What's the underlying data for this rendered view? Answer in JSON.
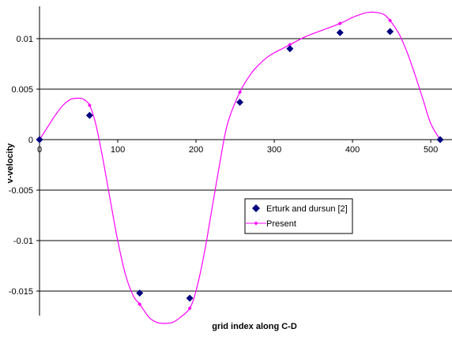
{
  "chart_data": {
    "type": "line",
    "title": "",
    "xlabel": "grid index along C-D",
    "ylabel": "v-velocity",
    "xlim": [
      0,
      530
    ],
    "ylim": [
      -0.0182,
      0.0128
    ],
    "x_ticks": [
      0,
      100,
      200,
      300,
      400,
      500
    ],
    "x_tick_labels": [
      "0",
      "100",
      "200",
      "300",
      "400",
      "500"
    ],
    "y_ticks": [
      0.01,
      0.005,
      0,
      -0.005,
      -0.01,
      -0.015
    ],
    "y_tick_labels": [
      "0.01",
      "0.005",
      "0",
      "-0.005",
      "-0.01",
      "-0.015"
    ],
    "grid": "horizontal",
    "legend_position": "center-right",
    "series": [
      {
        "name": "Erturk and dursun [2]",
        "style": "markers",
        "marker": "diamond",
        "color": "#000080",
        "x": [
          0,
          64,
          128,
          192,
          256,
          320,
          384,
          448,
          512
        ],
        "y": [
          0,
          0.0024,
          -0.0152,
          -0.0157,
          0.0037,
          0.009,
          0.0106,
          0.0107,
          0
        ]
      },
      {
        "name": "Present",
        "style": "line+markers",
        "marker": "diamond-small",
        "color": "#ff00ff",
        "x": [
          0,
          64,
          128,
          192,
          256,
          320,
          384,
          448,
          512
        ],
        "y": [
          0,
          0.0034,
          -0.0163,
          -0.0167,
          0.0047,
          0.0094,
          0.0115,
          0.0118,
          0
        ],
        "curve_x": [
          0,
          10,
          20,
          30,
          40,
          50,
          56,
          64,
          72,
          80,
          90,
          100,
          110,
          120,
          128,
          140,
          150,
          160,
          170,
          180,
          192,
          200,
          210,
          220,
          230,
          240,
          256,
          270,
          280,
          290,
          300,
          310,
          320,
          340,
          360,
          384,
          400,
          410,
          420,
          430,
          440,
          448,
          460,
          470,
          480,
          490,
          500,
          512
        ],
        "curve_y": [
          0,
          0.0012,
          0.0024,
          0.0034,
          0.004,
          0.0041,
          0.004,
          0.0034,
          0.0015,
          -0.0015,
          -0.0058,
          -0.01,
          -0.0134,
          -0.0155,
          -0.0163,
          -0.0176,
          -0.0181,
          -0.0182,
          -0.0181,
          -0.0176,
          -0.0167,
          -0.015,
          -0.0115,
          -0.007,
          -0.0025,
          0.0015,
          0.0047,
          0.0065,
          0.0074,
          0.0081,
          0.0086,
          0.009,
          0.0094,
          0.0102,
          0.0108,
          0.0115,
          0.0121,
          0.0124,
          0.0126,
          0.0126,
          0.0124,
          0.0118,
          0.0104,
          0.0086,
          0.0064,
          0.004,
          0.0016,
          0
        ]
      }
    ]
  }
}
